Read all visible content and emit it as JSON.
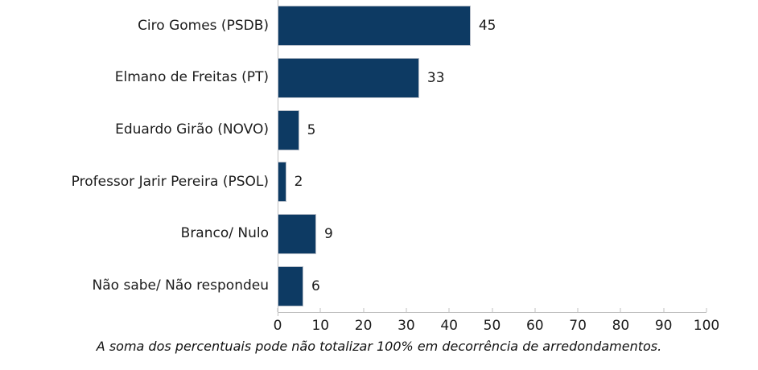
{
  "chart_data": {
    "type": "bar",
    "orientation": "horizontal",
    "title": "",
    "categories": [
      "Ciro Gomes (PSDB)",
      "Elmano de Freitas (PT)",
      "Eduardo Girão (NOVO)",
      "Professor Jarir Pereira (PSOL)",
      "Branco/ Nulo",
      "Não sabe/ Não respondeu"
    ],
    "values": [
      45,
      33,
      5,
      2,
      9,
      6
    ],
    "value_suffix": "",
    "xlim": [
      0,
      100
    ],
    "x_ticks": [
      0,
      10,
      20,
      30,
      40,
      50,
      60,
      70,
      80,
      90,
      100
    ],
    "grid": false,
    "legend": "none",
    "bar_color": "#0d3a63",
    "bar_border_color": "#b9c0ca",
    "axis_color": "#c0c0c0",
    "text_color": "#1b1b1b",
    "footnote": "A soma dos percentuais pode não totalizar 100% em decorrência de arredondamentos."
  }
}
